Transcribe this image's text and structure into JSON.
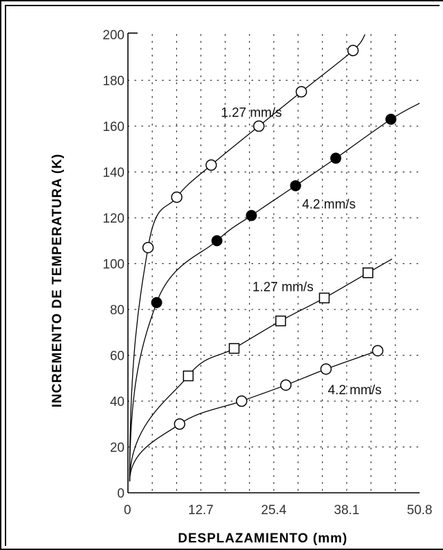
{
  "chart_data": {
    "type": "scatter",
    "xlabel": "DESPLAZAMIENTO  (mm)",
    "ylabel": "INCREMENTO DE TEMPERATURA  (K)",
    "xlim": [
      0,
      50.8
    ],
    "ylim": [
      0,
      200
    ],
    "xticks": [
      "0",
      "12.7",
      "25.4",
      "38.1",
      "50.8"
    ],
    "yticks": [
      "0",
      "20",
      "40",
      "60",
      "80",
      "100",
      "120",
      "140",
      "160",
      "180",
      "200"
    ],
    "grid": "dotted",
    "series": [
      {
        "name": "1.27 mm/s",
        "marker": "open-circle",
        "x": [
          3.5,
          8.5,
          14.5,
          22.8,
          30.2,
          39.2
        ],
        "y": [
          107,
          129,
          143,
          160,
          175,
          193
        ],
        "curve_end": [
          41.3,
          200
        ]
      },
      {
        "name": "4.2 mm/s",
        "marker": "filled-circle",
        "x": [
          5,
          15.5,
          21.5,
          29.2,
          36.2,
          45.8
        ],
        "y": [
          83,
          110,
          121,
          134,
          146,
          163
        ],
        "curve_end": [
          50.8,
          170
        ]
      },
      {
        "name": "1.27 mm/s",
        "marker": "open-square",
        "x": [
          10.5,
          18.5,
          26.6,
          34.2,
          41.8
        ],
        "y": [
          51,
          63,
          75,
          85,
          96
        ],
        "curve_end": [
          46,
          102
        ]
      },
      {
        "name": "4.2 mm/s",
        "marker": "open-circle",
        "x": [
          9,
          19.8,
          27.5,
          34.5,
          43.5
        ],
        "y": [
          30,
          40,
          47,
          54,
          62
        ],
        "curve_end": [
          43.8,
          62.5
        ]
      }
    ],
    "annotations": [
      {
        "text": "1.27 mm/s",
        "x": 21.5,
        "y": 164
      },
      {
        "text": "4.2 mm/s",
        "x": 35,
        "y": 124
      },
      {
        "text": "1.27 mm/s",
        "x": 27,
        "y": 88
      },
      {
        "text": "4.2 mm/s",
        "x": 39.5,
        "y": 43
      }
    ]
  }
}
